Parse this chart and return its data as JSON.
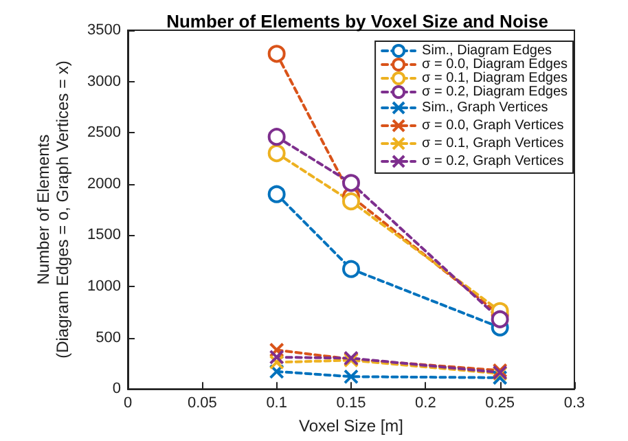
{
  "chart_data": {
    "type": "line",
    "title": "Number of Elements by Voxel Size and Noise",
    "xlabel": "Voxel Size [m]",
    "ylabel": "Number of Elements\n(Diagram Edges = o, Graph Vertices = x)",
    "x": [
      0.1,
      0.15,
      0.25
    ],
    "series": [
      {
        "name": "Sim., Diagram Edges",
        "color": "#0072bd",
        "marker": "circle",
        "values": [
          1900,
          1170,
          600
        ]
      },
      {
        "name": "σ = 0.0, Diagram Edges",
        "color": "#d95319",
        "marker": "circle",
        "values": [
          3270,
          1880,
          720
        ]
      },
      {
        "name": "σ = 0.1, Diagram Edges",
        "color": "#edb120",
        "marker": "circle",
        "values": [
          2300,
          1830,
          760
        ]
      },
      {
        "name": "σ = 0.2, Diagram Edges",
        "color": "#7e2f8e",
        "marker": "circle",
        "values": [
          2460,
          2010,
          680
        ]
      },
      {
        "name": "Sim., Graph Vertices",
        "color": "#0072bd",
        "marker": "cross",
        "values": [
          170,
          120,
          110
        ]
      },
      {
        "name": "σ = 0.0, Graph Vertices",
        "color": "#d95319",
        "marker": "cross",
        "values": [
          380,
          290,
          180
        ]
      },
      {
        "name": "σ = 0.1, Graph Vertices",
        "color": "#edb120",
        "marker": "cross",
        "values": [
          260,
          280,
          150
        ]
      },
      {
        "name": "σ = 0.2, Graph Vertices",
        "color": "#7e2f8e",
        "marker": "cross",
        "values": [
          310,
          300,
          160
        ]
      }
    ],
    "xlim": [
      0,
      0.3
    ],
    "xticks": [
      0,
      0.05,
      0.1,
      0.15,
      0.2,
      0.25,
      0.3
    ],
    "ylim": [
      0,
      3500
    ],
    "yticks": [
      0,
      500,
      1000,
      1500,
      2000,
      2500,
      3000,
      3500
    ],
    "line_style": "dashed",
    "legend": "top right",
    "grid": false
  }
}
